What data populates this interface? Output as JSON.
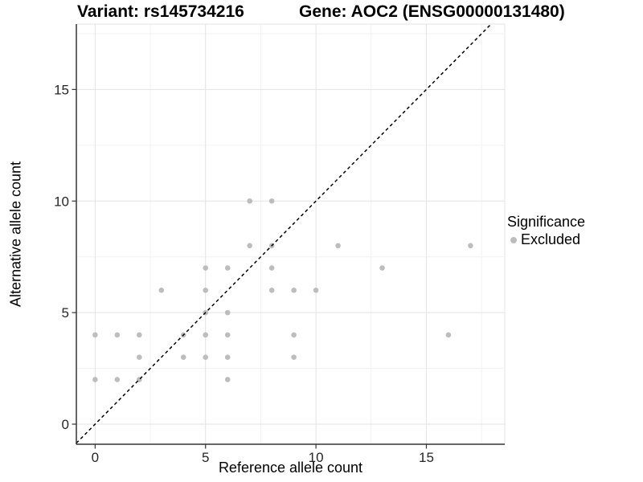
{
  "titles": {
    "variant": "Variant: rs145734216",
    "gene": "Gene: AOC2 (ENSG00000131480)"
  },
  "chart_data": {
    "type": "scatter",
    "title": "Variant: rs145734216 — Gene: AOC2 (ENSG00000131480)",
    "xlabel": "Reference allele count",
    "ylabel": "Alternative allele count",
    "x_ticks": [
      0,
      5,
      10,
      15
    ],
    "y_ticks": [
      0,
      5,
      10,
      15
    ],
    "x_minor_ticks": [
      2.5,
      7.5,
      12.5,
      17.5
    ],
    "y_minor_ticks": [
      2.5,
      7.5,
      12.5,
      17.5
    ],
    "xlim": [
      -0.85,
      18.55
    ],
    "ylim": [
      -0.9,
      17.93
    ],
    "grid": "on",
    "identity_line": {
      "slope": 1,
      "intercept": 0,
      "style": "dashed",
      "color": "#000000"
    },
    "series": [
      {
        "name": "Excluded",
        "color": "#bdbdbd",
        "points": [
          [
            0,
            2
          ],
          [
            1,
            2
          ],
          [
            2,
            2
          ],
          [
            6,
            2
          ],
          [
            2,
            3
          ],
          [
            4,
            3
          ],
          [
            5,
            3
          ],
          [
            6,
            3
          ],
          [
            9,
            3
          ],
          [
            0,
            4
          ],
          [
            1,
            4
          ],
          [
            2,
            4
          ],
          [
            4,
            4
          ],
          [
            5,
            4
          ],
          [
            6,
            4
          ],
          [
            9,
            4
          ],
          [
            16,
            4
          ],
          [
            5,
            5
          ],
          [
            6,
            5
          ],
          [
            3,
            6
          ],
          [
            5,
            6
          ],
          [
            8,
            6
          ],
          [
            9,
            6
          ],
          [
            10,
            6
          ],
          [
            5,
            7
          ],
          [
            6,
            7
          ],
          [
            8,
            7
          ],
          [
            13,
            7
          ],
          [
            7,
            8
          ],
          [
            8,
            8
          ],
          [
            11,
            8
          ],
          [
            17,
            8
          ],
          [
            7,
            10
          ],
          [
            8,
            10
          ]
        ]
      }
    ],
    "legend": {
      "title": "Significance",
      "position": "right",
      "items": [
        {
          "label": "Excluded",
          "color": "#bdbdbd"
        }
      ]
    }
  },
  "colors": {
    "point": "#bdbdbd",
    "grid_major": "#e3e3e3",
    "grid_minor": "#f1f1f1",
    "axis_line": "#333333",
    "tick_text": "#262626",
    "panel_bg": "#ffffff"
  }
}
